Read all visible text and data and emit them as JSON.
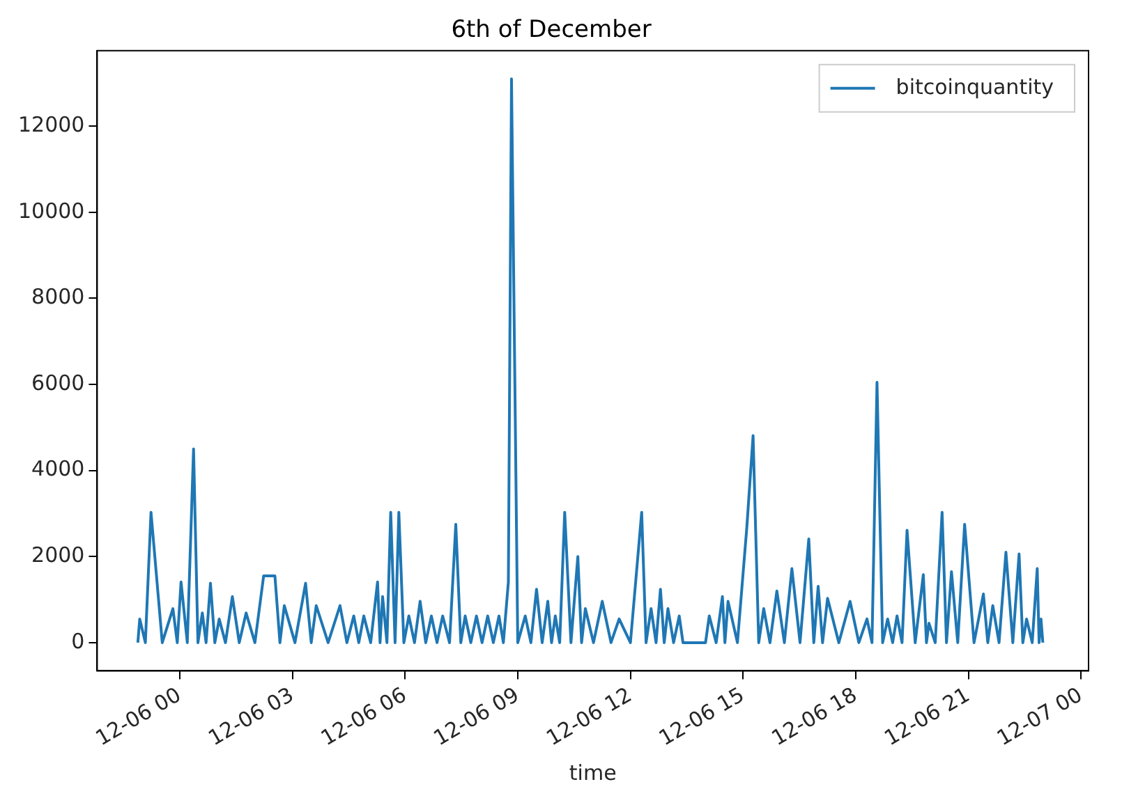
{
  "chart_data": {
    "type": "line",
    "title": "6th of December",
    "xlabel": "time",
    "xlim": [
      "--12-05T21:48",
      "--12-07T00:12"
    ],
    "ylim": [
      -655,
      13755
    ],
    "xticks": [
      {
        "value": "--12-06T00:00",
        "label": "12-06 00"
      },
      {
        "value": "--12-06T03:00",
        "label": "12-06 03"
      },
      {
        "value": "--12-06T06:00",
        "label": "12-06 06"
      },
      {
        "value": "--12-06T09:00",
        "label": "12-06 09"
      },
      {
        "value": "--12-06T12:00",
        "label": "12-06 12"
      },
      {
        "value": "--12-06T15:00",
        "label": "12-06 15"
      },
      {
        "value": "--12-06T18:00",
        "label": "12-06 18"
      },
      {
        "value": "--12-06T21:00",
        "label": "12-06 21"
      },
      {
        "value": "--12-07T00:00",
        "label": "12-07 00"
      }
    ],
    "yticks": [
      0,
      2000,
      4000,
      6000,
      8000,
      10000,
      12000
    ],
    "legend": "top right",
    "line_style": "solid",
    "series": [
      {
        "name": "bitcoinquantity",
        "color": "#1f77b4",
        "x": [
          "--12-05T22:53",
          "--12-05T22:56",
          "--12-05T23:05",
          "--12-05T23:14",
          "--12-05T23:32",
          "--12-05T23:49",
          "--12-05T23:56",
          "--12-06T00:02",
          "--12-06T00:12",
          "--12-06T00:22",
          "--12-06T00:29",
          "--12-06T00:36",
          "--12-06T00:42",
          "--12-06T00:49",
          "--12-06T00:56",
          "--12-06T01:03",
          "--12-06T01:13",
          "--12-06T01:24",
          "--12-06T01:35",
          "--12-06T01:46",
          "--12-06T02:00",
          "--12-06T02:14",
          "--12-06T02:23",
          "--12-06T02:32",
          "--12-06T02:40",
          "--12-06T02:47",
          "--12-06T03:04",
          "--12-06T03:21",
          "--12-06T03:30",
          "--12-06T03:38",
          "--12-06T03:57",
          "--12-06T04:16",
          "--12-06T04:27",
          "--12-06T04:38",
          "--12-06T04:46",
          "--12-06T04:54",
          "--12-06T05:05",
          "--12-06T05:16",
          "--12-06T05:20",
          "--12-06T05:24",
          "--12-06T05:31",
          "--12-06T05:37",
          "--12-06T05:44",
          "--12-06T05:50",
          "--12-06T05:58",
          "--12-06T06:06",
          "--12-06T06:15",
          "--12-06T06:24",
          "--12-06T06:33",
          "--12-06T06:42",
          "--12-06T06:51",
          "--12-06T07:00",
          "--12-06T07:11",
          "--12-06T07:21",
          "--12-06T07:29",
          "--12-06T07:36",
          "--12-06T07:45",
          "--12-06T07:54",
          "--12-06T08:03",
          "--12-06T08:12",
          "--12-06T08:21",
          "--12-06T08:30",
          "--12-06T08:37",
          "--12-06T08:45",
          "--12-06T08:50",
          "--12-06T09:00",
          "--12-06T09:12",
          "--12-06T09:21",
          "--12-06T09:30",
          "--12-06T09:39",
          "--12-06T09:48",
          "--12-06T09:54",
          "--12-06T10:00",
          "--12-06T10:07",
          "--12-06T10:15",
          "--12-06T10:25",
          "--12-06T10:36",
          "--12-06T10:42",
          "--12-06T10:48",
          "--12-06T11:01",
          "--12-06T11:15",
          "--12-06T11:29",
          "--12-06T11:42",
          "--12-06T12:00",
          "--12-06T12:18",
          "--12-06T12:25",
          "--12-06T12:33",
          "--12-06T12:41",
          "--12-06T12:48",
          "--12-06T12:54",
          "--12-06T13:00",
          "--12-06T13:09",
          "--12-06T13:18",
          "--12-06T13:24",
          "--12-06T14:00",
          "--12-06T14:06",
          "--12-06T14:17",
          "--12-06T14:27",
          "--12-06T14:31",
          "--12-06T14:36",
          "--12-06T14:51",
          "--12-06T15:06",
          "--12-06T15:16",
          "--12-06T15:25",
          "--12-06T15:33",
          "--12-06T15:43",
          "--12-06T15:54",
          "--12-06T16:06",
          "--12-06T16:18",
          "--12-06T16:31",
          "--12-06T16:45",
          "--12-06T16:53",
          "--12-06T17:00",
          "--12-06T17:07",
          "--12-06T17:15",
          "--12-06T17:33",
          "--12-06T17:51",
          "--12-06T18:05",
          "--12-06T18:18",
          "--12-06T18:26",
          "--12-06T18:34",
          "--12-06T18:43",
          "--12-06T18:51",
          "--12-06T18:59",
          "--12-06T19:06",
          "--12-06T19:14",
          "--12-06T19:22",
          "--12-06T19:35",
          "--12-06T19:48",
          "--12-06T19:53",
          "--12-06T19:57",
          "--12-06T20:07",
          "--12-06T20:18",
          "--12-06T20:25",
          "--12-06T20:33",
          "--12-06T20:43",
          "--12-06T20:54",
          "--12-06T21:09",
          "--12-06T21:24",
          "--12-06T21:31",
          "--12-06T21:39",
          "--12-06T21:49",
          "--12-06T22:00",
          "--12-06T22:11",
          "--12-06T22:21",
          "--12-06T22:27",
          "--12-06T22:33",
          "--12-06T22:42",
          "--12-06T22:50",
          "--12-06T22:53",
          "--12-06T22:56",
          "--12-06T22:59"
        ],
        "values": [
          0,
          550,
          0,
          3030,
          0,
          790,
          0,
          1410,
          0,
          4500,
          0,
          690,
          0,
          1380,
          0,
          550,
          0,
          1070,
          0,
          690,
          0,
          1550,
          1550,
          1550,
          0,
          860,
          0,
          1380,
          0,
          860,
          0,
          860,
          0,
          620,
          0,
          620,
          0,
          1410,
          0,
          1070,
          0,
          3030,
          0,
          3030,
          0,
          620,
          0,
          960,
          0,
          620,
          0,
          620,
          0,
          2750,
          0,
          620,
          0,
          620,
          0,
          620,
          0,
          620,
          0,
          1410,
          13100,
          0,
          620,
          0,
          1240,
          0,
          960,
          0,
          620,
          0,
          3030,
          0,
          2000,
          0,
          790,
          0,
          960,
          0,
          550,
          0,
          3030,
          0,
          790,
          0,
          1240,
          0,
          790,
          0,
          620,
          0,
          0,
          620,
          0,
          1070,
          0,
          960,
          0,
          2680,
          4810,
          0,
          790,
          0,
          1200,
          0,
          1720,
          0,
          2410,
          0,
          1310,
          0,
          1030,
          0,
          960,
          0,
          550,
          0,
          6050,
          0,
          550,
          0,
          620,
          0,
          2610,
          0,
          1580,
          0,
          450,
          0,
          3030,
          0,
          1650,
          0,
          2750,
          0,
          1130,
          0,
          860,
          0,
          2100,
          0,
          2060,
          0,
          550,
          0,
          1720,
          0,
          550,
          0
        ]
      }
    ]
  }
}
